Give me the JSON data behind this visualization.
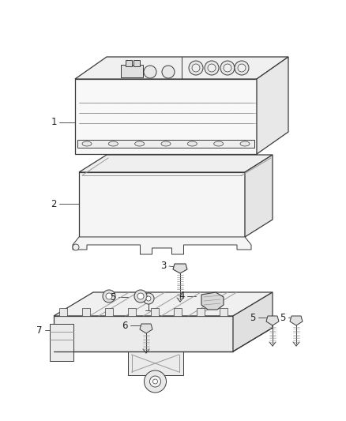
{
  "background_color": "#ffffff",
  "line_color": "#3a3a3a",
  "light_line_color": "#999999",
  "figsize": [
    4.38,
    5.33
  ],
  "dpi": 100,
  "label_fs": 8.5,
  "label_color": "#222222"
}
